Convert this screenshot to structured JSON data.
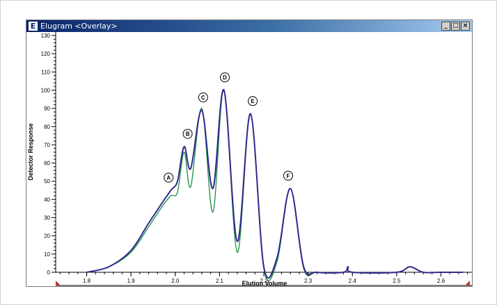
{
  "window": {
    "title": "Elugram <Overlay>",
    "app_icon_letter": "E",
    "minimize_glyph": "_",
    "maximize_glyph": "□",
    "close_glyph": "×"
  },
  "colors": {
    "series_blue": "#2e2a8c",
    "series_green": "#1a8c3c",
    "titlebar": "#0a246a"
  },
  "chart_data": {
    "type": "line",
    "title": "",
    "xlabel": "Elution Volume",
    "ylabel": "Detector Response",
    "xlim": [
      1.73,
      2.67
    ],
    "ylim": [
      0,
      130
    ],
    "x_ticks": [
      1.8,
      1.9,
      2.0,
      2.1,
      2.2,
      2.3,
      2.4,
      2.5,
      2.6
    ],
    "x_tick_labels": [
      "1.8",
      "1.9",
      "2.0",
      "2.1",
      "2.2",
      "2.3",
      "2.4",
      "2.5",
      "2.6"
    ],
    "y_ticks": [
      0,
      10,
      20,
      30,
      40,
      50,
      60,
      70,
      80,
      90,
      100,
      110,
      120,
      130
    ],
    "y_tick_labels": [
      "0",
      "10",
      "20",
      "30",
      "40",
      "50",
      "60",
      "70",
      "80",
      "90",
      "100",
      "110",
      "120",
      "130"
    ],
    "grid": false,
    "series": [
      {
        "color": "#2e2a8c",
        "x": [
          1.8,
          1.85,
          1.9,
          1.94,
          1.97,
          1.99,
          2.005,
          2.02,
          2.035,
          2.06,
          2.085,
          2.11,
          2.14,
          2.17,
          2.2,
          2.23,
          2.26,
          2.29,
          2.32,
          2.38,
          2.39,
          2.4,
          2.5,
          2.53,
          2.56,
          2.6,
          2.65
        ],
        "y": [
          0,
          3,
          12,
          27,
          38,
          45,
          50,
          69,
          57,
          89,
          46,
          100,
          17,
          87,
          3,
          8,
          46,
          3,
          0,
          0,
          3,
          0,
          0,
          3,
          0,
          0,
          0
        ]
      },
      {
        "color": "#1a8c3c",
        "x": [
          1.8,
          1.85,
          1.9,
          1.94,
          1.97,
          1.99,
          2.005,
          2.02,
          2.035,
          2.06,
          2.085,
          2.11,
          2.14,
          2.17,
          2.2,
          2.23,
          2.26,
          2.29,
          2.32,
          2.38,
          2.39,
          2.4,
          2.5,
          2.53,
          2.56,
          2.6,
          2.65
        ],
        "y": [
          0,
          3,
          11,
          25,
          36,
          42,
          44,
          66,
          47,
          90,
          33,
          100,
          11,
          87,
          2,
          6,
          46,
          2,
          0,
          0,
          3,
          0,
          0,
          3,
          0,
          0,
          0
        ]
      }
    ],
    "annotations": [
      {
        "label": "A",
        "x": 1.985,
        "y": 52
      },
      {
        "label": "B",
        "x": 2.028,
        "y": 76
      },
      {
        "label": "C",
        "x": 2.063,
        "y": 96
      },
      {
        "label": "D",
        "x": 2.112,
        "y": 107
      },
      {
        "label": "E",
        "x": 2.175,
        "y": 94
      },
      {
        "label": "F",
        "x": 2.255,
        "y": 53
      }
    ]
  }
}
